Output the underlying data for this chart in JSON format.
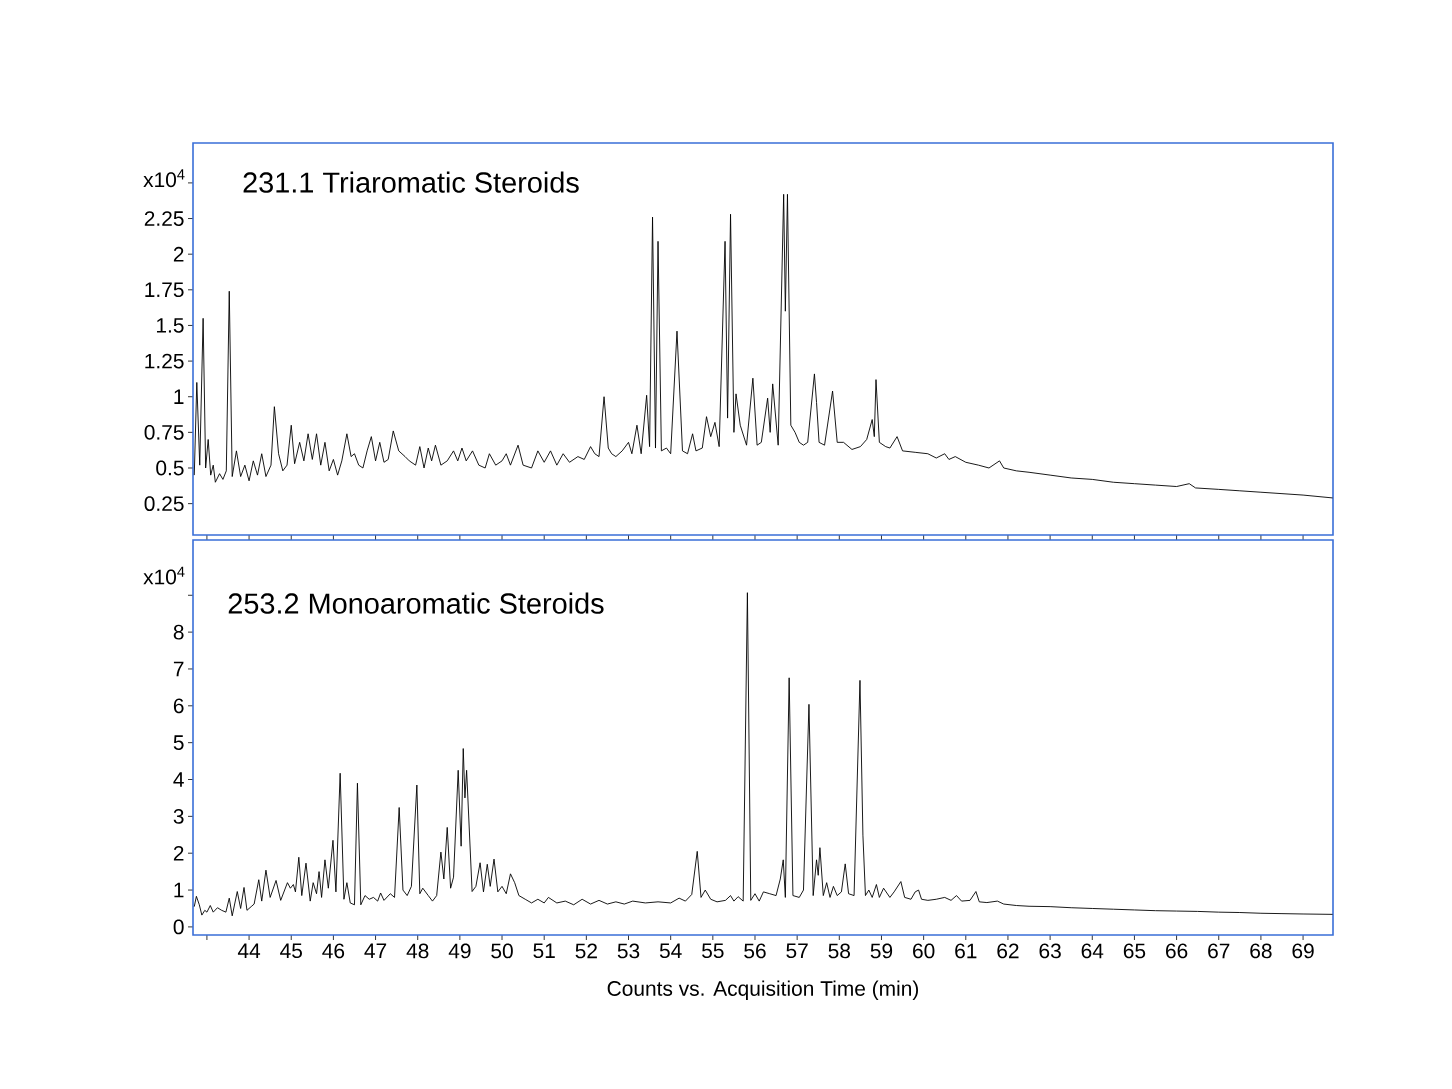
{
  "chart_data": [
    {
      "type": "line",
      "title": "231.1 Triaromatic Steroids",
      "ylabel": "x10$^{4}$",
      "xlim": [
        42.67,
        69.71
      ],
      "ylim": [
        0.03,
        2.78
      ],
      "yticks": [
        0.25,
        0.5,
        0.75,
        1,
        1.25,
        1.5,
        1.75,
        2,
        2.25,
        {
          "value": 2.5,
          "label": null
        }
      ],
      "tick_labels": "y",
      "x": [
        42.7,
        42.76,
        42.83,
        42.91,
        42.97,
        43.03,
        43.09,
        43.15,
        43.2,
        43.3,
        43.38,
        43.46,
        43.53,
        43.6,
        43.7,
        43.8,
        43.9,
        44.0,
        44.1,
        44.2,
        44.3,
        44.4,
        44.52,
        44.6,
        44.7,
        44.8,
        44.9,
        45.0,
        45.08,
        45.2,
        45.3,
        45.4,
        45.5,
        45.6,
        45.7,
        45.8,
        45.9,
        46.0,
        46.1,
        46.2,
        46.32,
        46.42,
        46.5,
        46.6,
        46.7,
        46.8,
        46.9,
        47.0,
        47.1,
        47.2,
        47.3,
        47.42,
        47.55,
        47.7,
        47.8,
        47.95,
        48.05,
        48.15,
        48.25,
        48.33,
        48.42,
        48.55,
        48.7,
        48.85,
        48.95,
        49.05,
        49.15,
        49.3,
        49.45,
        49.6,
        49.7,
        49.85,
        50.0,
        50.1,
        50.2,
        50.38,
        50.5,
        50.7,
        50.85,
        51.0,
        51.15,
        51.3,
        51.45,
        51.6,
        51.8,
        51.95,
        52.1,
        52.2,
        52.3,
        52.42,
        52.52,
        52.6,
        52.7,
        52.85,
        53.0,
        53.08,
        53.2,
        53.3,
        53.43,
        53.5,
        53.57,
        53.64,
        53.7,
        53.78,
        53.9,
        54.0,
        54.15,
        54.28,
        54.4,
        54.52,
        54.6,
        54.75,
        54.85,
        54.95,
        55.05,
        55.15,
        55.29,
        55.35,
        55.42,
        55.5,
        55.55,
        55.65,
        55.8,
        55.95,
        56.05,
        56.15,
        56.3,
        56.36,
        56.42,
        56.55,
        56.68,
        56.72,
        56.77,
        56.85,
        56.95,
        57.05,
        57.15,
        57.25,
        57.41,
        57.46,
        57.52,
        57.65,
        57.84,
        57.95,
        58.1,
        58.3,
        58.5,
        58.65,
        58.78,
        58.83,
        58.87,
        58.95,
        59.1,
        59.2,
        59.37,
        59.5,
        59.8,
        60.1,
        60.3,
        60.5,
        60.6,
        60.75,
        61.0,
        61.3,
        61.55,
        61.8,
        61.9,
        62.2,
        62.5,
        63.0,
        63.5,
        64.0,
        64.5,
        65.0,
        65.5,
        66.0,
        66.3,
        66.45,
        67.0,
        67.5,
        68.0,
        68.5,
        69.0,
        69.7
      ],
      "series": [
        {
          "color": "#000000",
          "values": [
            0.45,
            1.1,
            0.52,
            1.55,
            0.5,
            0.7,
            0.45,
            0.52,
            0.4,
            0.46,
            0.42,
            0.48,
            1.74,
            0.44,
            0.62,
            0.44,
            0.52,
            0.41,
            0.55,
            0.45,
            0.6,
            0.44,
            0.52,
            0.93,
            0.6,
            0.48,
            0.52,
            0.8,
            0.53,
            0.68,
            0.55,
            0.74,
            0.56,
            0.74,
            0.52,
            0.68,
            0.48,
            0.56,
            0.45,
            0.55,
            0.74,
            0.58,
            0.6,
            0.52,
            0.5,
            0.62,
            0.72,
            0.55,
            0.68,
            0.54,
            0.56,
            0.76,
            0.62,
            0.58,
            0.55,
            0.52,
            0.65,
            0.5,
            0.64,
            0.55,
            0.66,
            0.52,
            0.55,
            0.62,
            0.55,
            0.64,
            0.55,
            0.62,
            0.52,
            0.5,
            0.6,
            0.52,
            0.55,
            0.6,
            0.52,
            0.66,
            0.52,
            0.5,
            0.62,
            0.54,
            0.62,
            0.52,
            0.6,
            0.54,
            0.58,
            0.56,
            0.65,
            0.6,
            0.58,
            1.0,
            0.64,
            0.6,
            0.58,
            0.62,
            0.68,
            0.6,
            0.8,
            0.6,
            1.01,
            0.65,
            2.26,
            0.64,
            2.09,
            0.62,
            0.64,
            0.6,
            1.46,
            0.62,
            0.6,
            0.74,
            0.62,
            0.64,
            0.86,
            0.72,
            0.82,
            0.65,
            2.09,
            0.85,
            2.28,
            0.75,
            1.02,
            0.8,
            0.66,
            1.13,
            0.66,
            0.68,
            0.99,
            0.75,
            1.09,
            0.66,
            2.42,
            1.6,
            2.42,
            0.8,
            0.75,
            0.68,
            0.66,
            0.68,
            1.16,
            0.96,
            0.68,
            0.66,
            1.04,
            0.68,
            0.68,
            0.63,
            0.65,
            0.7,
            0.84,
            0.72,
            1.12,
            0.68,
            0.65,
            0.64,
            0.72,
            0.62,
            0.61,
            0.6,
            0.57,
            0.6,
            0.56,
            0.58,
            0.54,
            0.52,
            0.5,
            0.55,
            0.5,
            0.48,
            0.47,
            0.45,
            0.43,
            0.42,
            0.4,
            0.39,
            0.38,
            0.37,
            0.39,
            0.36,
            0.35,
            0.34,
            0.33,
            0.32,
            0.31,
            0.29
          ]
        }
      ]
    },
    {
      "type": "line",
      "title": "253.2 Monoaromatic Steroids",
      "ylabel": "x10$^{4}$",
      "xlabel": "Counts vs. Acquisition Time (min)",
      "xlim": [
        42.67,
        69.71
      ],
      "ylim": [
        -0.22,
        10.5
      ],
      "xticks": [
        {
          "value": 43,
          "label": null
        },
        44,
        45,
        46,
        47,
        48,
        49,
        50,
        51,
        52,
        53,
        54,
        55,
        56,
        57,
        58,
        59,
        60,
        61,
        62,
        63,
        64,
        65,
        66,
        67,
        68,
        69
      ],
      "yticks": [
        0,
        1,
        2,
        3,
        4,
        5,
        6,
        7,
        8,
        {
          "value": 9,
          "label": null
        }
      ],
      "x": [
        42.7,
        42.75,
        42.82,
        42.88,
        42.95,
        43.0,
        43.08,
        43.15,
        43.25,
        43.35,
        43.45,
        43.53,
        43.6,
        43.72,
        43.8,
        43.88,
        43.95,
        44.05,
        44.12,
        44.23,
        44.3,
        44.4,
        44.5,
        44.64,
        44.75,
        44.91,
        44.98,
        45.05,
        45.1,
        45.18,
        45.25,
        45.35,
        45.45,
        45.52,
        45.6,
        45.66,
        45.72,
        45.8,
        45.88,
        45.99,
        46.06,
        46.16,
        46.25,
        46.32,
        46.4,
        46.5,
        46.57,
        46.65,
        46.75,
        46.85,
        46.95,
        47.05,
        47.12,
        47.2,
        47.35,
        47.45,
        47.56,
        47.65,
        47.75,
        47.85,
        47.98,
        48.05,
        48.12,
        48.25,
        48.35,
        48.45,
        48.55,
        48.62,
        48.7,
        48.78,
        48.85,
        48.96,
        49.03,
        49.08,
        49.12,
        49.16,
        49.29,
        49.38,
        49.48,
        49.56,
        49.65,
        49.72,
        49.81,
        49.9,
        50.0,
        50.1,
        50.2,
        50.3,
        50.4,
        50.55,
        50.7,
        50.85,
        51.0,
        51.1,
        51.3,
        51.5,
        51.7,
        51.9,
        52.1,
        52.3,
        52.5,
        52.7,
        52.9,
        53.1,
        53.4,
        53.7,
        54.0,
        54.2,
        54.35,
        54.5,
        54.63,
        54.72,
        54.82,
        54.95,
        55.1,
        55.3,
        55.42,
        55.5,
        55.6,
        55.72,
        55.82,
        55.9,
        56.0,
        56.1,
        56.2,
        56.35,
        56.5,
        56.6,
        56.67,
        56.72,
        56.81,
        56.9,
        57.05,
        57.15,
        57.28,
        57.38,
        57.46,
        57.5,
        57.54,
        57.62,
        57.7,
        57.78,
        57.86,
        57.95,
        58.05,
        58.14,
        58.22,
        58.35,
        58.49,
        58.56,
        58.62,
        58.7,
        58.78,
        58.88,
        58.95,
        59.05,
        59.2,
        59.3,
        59.46,
        59.55,
        59.7,
        59.8,
        59.88,
        59.95,
        60.1,
        60.3,
        60.5,
        60.65,
        60.78,
        60.9,
        61.1,
        61.24,
        61.32,
        61.5,
        61.75,
        61.9,
        62.2,
        62.5,
        63.0,
        63.5,
        64.0,
        64.5,
        65.0,
        65.5,
        66.0,
        66.5,
        67.0,
        67.5,
        68.0,
        68.5,
        69.0,
        69.7
      ],
      "series": [
        {
          "color": "#000000",
          "values": [
            0.55,
            0.83,
            0.6,
            0.32,
            0.45,
            0.4,
            0.58,
            0.4,
            0.52,
            0.45,
            0.4,
            0.78,
            0.3,
            0.96,
            0.5,
            1.07,
            0.45,
            0.55,
            0.62,
            1.28,
            0.7,
            1.54,
            0.8,
            1.26,
            0.72,
            1.2,
            1.05,
            1.15,
            0.95,
            1.89,
            0.85,
            1.73,
            0.7,
            1.2,
            0.9,
            1.5,
            0.8,
            1.82,
            1.05,
            2.35,
            0.95,
            4.17,
            0.75,
            1.2,
            0.65,
            0.6,
            3.9,
            0.6,
            0.85,
            0.75,
            0.8,
            0.7,
            0.92,
            0.72,
            0.9,
            0.8,
            3.24,
            1.0,
            0.85,
            1.1,
            3.85,
            0.9,
            1.05,
            0.85,
            0.7,
            0.85,
            2.03,
            1.3,
            2.7,
            1.05,
            1.35,
            4.25,
            2.19,
            4.84,
            3.5,
            4.25,
            0.96,
            1.1,
            1.74,
            0.95,
            1.7,
            1.1,
            1.84,
            0.95,
            1.1,
            0.9,
            1.44,
            1.2,
            0.85,
            0.75,
            0.65,
            0.75,
            0.65,
            0.8,
            0.65,
            0.7,
            0.6,
            0.75,
            0.62,
            0.72,
            0.62,
            0.68,
            0.62,
            0.7,
            0.65,
            0.68,
            0.65,
            0.78,
            0.7,
            0.88,
            2.05,
            0.8,
            1.0,
            0.75,
            0.68,
            0.72,
            0.85,
            0.7,
            0.82,
            0.7,
            9.07,
            0.72,
            0.9,
            0.7,
            0.95,
            0.9,
            0.85,
            1.3,
            1.82,
            0.8,
            6.76,
            0.85,
            0.8,
            1.0,
            6.04,
            0.85,
            1.82,
            1.4,
            2.15,
            0.85,
            1.2,
            0.8,
            1.1,
            0.85,
            0.95,
            1.71,
            0.9,
            0.85,
            6.69,
            2.49,
            0.85,
            1.0,
            0.8,
            1.15,
            0.8,
            1.05,
            0.8,
            0.95,
            1.23,
            0.8,
            0.75,
            0.95,
            1.0,
            0.75,
            0.72,
            0.75,
            0.8,
            0.72,
            0.85,
            0.7,
            0.72,
            0.96,
            0.68,
            0.66,
            0.7,
            0.62,
            0.58,
            0.56,
            0.55,
            0.52,
            0.5,
            0.48,
            0.46,
            0.44,
            0.43,
            0.42,
            0.4,
            0.39,
            0.37,
            0.36,
            0.35,
            0.34
          ]
        }
      ]
    }
  ]
}
